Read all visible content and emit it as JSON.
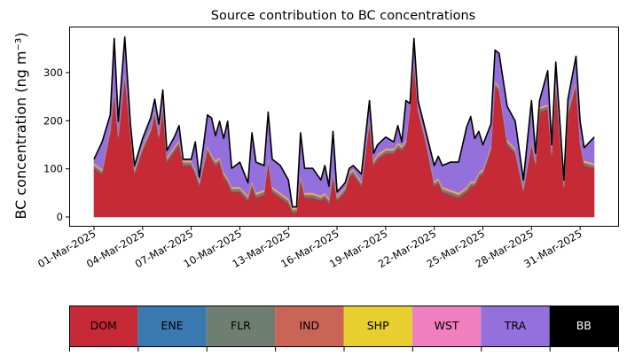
{
  "chart_data": {
    "type": "area",
    "title": "Source contribution to BC concentrations",
    "ylabel": "BC concentration (ng m⁻³)",
    "xlabel": "",
    "x_unit": "days since 01-Mar-2025",
    "ylim": [
      -18,
      400
    ],
    "xlim": [
      -1.53,
      32.35
    ],
    "yticks": [
      0,
      100,
      200,
      300
    ],
    "xticks": [
      {
        "day": 0,
        "label": "01-Mar-2025"
      },
      {
        "day": 3,
        "label": "04-Mar-2025"
      },
      {
        "day": 6,
        "label": "07-Mar-2025"
      },
      {
        "day": 9,
        "label": "10-Mar-2025"
      },
      {
        "day": 12,
        "label": "13-Mar-2025"
      },
      {
        "day": 15,
        "label": "16-Mar-2025"
      },
      {
        "day": 18,
        "label": "19-Mar-2025"
      },
      {
        "day": 21,
        "label": "22-Mar-2025"
      },
      {
        "day": 24,
        "label": "25-Mar-2025"
      },
      {
        "day": 27,
        "label": "28-Mar-2025"
      },
      {
        "day": 30,
        "label": "31-Mar-2025"
      }
    ],
    "x": [
      0,
      0.5,
      1,
      1.25,
      1.5,
      1.9,
      2.25,
      2.5,
      3,
      3.5,
      3.75,
      4,
      4.25,
      4.5,
      5,
      5.25,
      5.5,
      6,
      6.25,
      6.5,
      7,
      7.25,
      7.5,
      7.75,
      8,
      8.25,
      8.5,
      9,
      9.5,
      9.75,
      10,
      10.5,
      10.75,
      11,
      11.5,
      12,
      12.25,
      12.5,
      12.75,
      13,
      13.5,
      14,
      14.25,
      14.5,
      14.75,
      15,
      15.5,
      15.75,
      16,
      16.5,
      17,
      17.25,
      17.5,
      18,
      18.5,
      18.75,
      19,
      19.25,
      19.5,
      19.75,
      20,
      20.5,
      21,
      21.25,
      21.5,
      22,
      22.5,
      23,
      23.25,
      23.5,
      23.75,
      24,
      24.5,
      24.75,
      25,
      25.5,
      26,
      26.5,
      27,
      27.25,
      27.5,
      28,
      28.25,
      28.5,
      29,
      29.25,
      29.75,
      30,
      30.25,
      30.87
    ],
    "series": [
      {
        "name": "DOM",
        "color": "#c52a36",
        "values": [
          101,
          89,
          175,
          255,
          163,
          291,
          169,
          89,
          138,
          175,
          212,
          163,
          224,
          114,
          138,
          150,
          107,
          107,
          89,
          64,
          138,
          120,
          107,
          114,
          83,
          71,
          52,
          52,
          34,
          64,
          40,
          46,
          114,
          52,
          40,
          28,
          9,
          9,
          77,
          40,
          40,
          34,
          40,
          28,
          83,
          34,
          52,
          83,
          89,
          64,
          193,
          107,
          120,
          132,
          132,
          144,
          138,
          150,
          224,
          316,
          218,
          150,
          64,
          71,
          52,
          46,
          40,
          52,
          64,
          64,
          83,
          89,
          138,
          273,
          261,
          150,
          132,
          52,
          150,
          107,
          218,
          224,
          126,
          273,
          58,
          211,
          273,
          150,
          107,
          101
        ]
      },
      {
        "name": "ENE",
        "color": "#3a78b0",
        "values": [
          1,
          1,
          1,
          1,
          1,
          1,
          1,
          1,
          1,
          1,
          1,
          1,
          1,
          1,
          1,
          1,
          1,
          1,
          1,
          1,
          1,
          1,
          1,
          1,
          1,
          1,
          1,
          1,
          1,
          1,
          1,
          1,
          1,
          1,
          1,
          1,
          1,
          1,
          1,
          1,
          1,
          1,
          1,
          1,
          1,
          1,
          1,
          1,
          1,
          1,
          1,
          1,
          1,
          1,
          1,
          1,
          1,
          1,
          1,
          1,
          1,
          1,
          1,
          1,
          1,
          1,
          1,
          1,
          1,
          1,
          1,
          1,
          1,
          1,
          1,
          1,
          1,
          1,
          1,
          1,
          1,
          1,
          1,
          1,
          1,
          1,
          1,
          1,
          1,
          1
        ]
      },
      {
        "name": "FLR",
        "color": "#6e7f72",
        "values": [
          4,
          4,
          4,
          4,
          4,
          4,
          4,
          4,
          4,
          4,
          4,
          4,
          4,
          4,
          4,
          4,
          4,
          4,
          4,
          4,
          4,
          4,
          4,
          4,
          4,
          4,
          4,
          4,
          4,
          4,
          4,
          4,
          4,
          4,
          4,
          4,
          4,
          4,
          4,
          4,
          4,
          4,
          4,
          4,
          4,
          4,
          4,
          4,
          4,
          4,
          4,
          4,
          4,
          4,
          4,
          4,
          4,
          4,
          4,
          4,
          4,
          4,
          4,
          4,
          4,
          4,
          4,
          4,
          4,
          4,
          4,
          4,
          4,
          4,
          4,
          4,
          4,
          4,
          4,
          4,
          4,
          4,
          4,
          4,
          4,
          4,
          4,
          4,
          4,
          4
        ]
      },
      {
        "name": "IND",
        "color": "#c86556",
        "values": [
          2,
          2,
          2,
          2,
          2,
          2,
          2,
          2,
          2,
          2,
          2,
          2,
          2,
          2,
          2,
          2,
          2,
          2,
          2,
          2,
          2,
          2,
          2,
          2,
          2,
          2,
          2,
          2,
          2,
          2,
          2,
          2,
          2,
          2,
          2,
          2,
          2,
          2,
          2,
          2,
          2,
          2,
          2,
          2,
          2,
          2,
          2,
          2,
          2,
          2,
          2,
          2,
          2,
          2,
          2,
          2,
          2,
          2,
          2,
          2,
          2,
          2,
          2,
          2,
          2,
          2,
          2,
          2,
          2,
          2,
          2,
          2,
          2,
          2,
          2,
          2,
          2,
          2,
          2,
          2,
          2,
          2,
          2,
          2,
          2,
          2,
          2,
          2,
          2,
          2
        ]
      },
      {
        "name": "SHP",
        "color": "#e6cf2e",
        "values": [
          2,
          2,
          2,
          2,
          2,
          2,
          2,
          2,
          2,
          2,
          2,
          2,
          2,
          2,
          2,
          2,
          2,
          2,
          2,
          2,
          2,
          2,
          2,
          2,
          2,
          2,
          2,
          2,
          2,
          2,
          2,
          2,
          2,
          2,
          2,
          2,
          2,
          2,
          2,
          2,
          2,
          2,
          2,
          2,
          2,
          2,
          2,
          2,
          2,
          2,
          2,
          2,
          2,
          2,
          2,
          2,
          2,
          2,
          2,
          2,
          2,
          2,
          2,
          2,
          2,
          2,
          2,
          2,
          2,
          2,
          2,
          2,
          2,
          2,
          2,
          2,
          2,
          2,
          2,
          2,
          2,
          2,
          2,
          2,
          2,
          2,
          2,
          2,
          2,
          2
        ]
      },
      {
        "name": "WST",
        "color": "#f07fbf",
        "values": [
          2,
          2,
          2,
          2,
          2,
          2,
          2,
          2,
          2,
          2,
          2,
          2,
          2,
          2,
          2,
          2,
          2,
          2,
          2,
          2,
          2,
          2,
          2,
          2,
          2,
          2,
          2,
          2,
          2,
          2,
          2,
          2,
          2,
          2,
          2,
          2,
          2,
          2,
          2,
          2,
          2,
          2,
          2,
          2,
          2,
          2,
          2,
          2,
          2,
          2,
          2,
          2,
          2,
          2,
          2,
          2,
          2,
          2,
          2,
          2,
          2,
          2,
          2,
          2,
          2,
          2,
          2,
          2,
          2,
          2,
          2,
          2,
          2,
          2,
          2,
          2,
          2,
          2,
          2,
          2,
          2,
          2,
          2,
          2,
          2,
          2,
          2,
          2,
          2,
          2
        ]
      },
      {
        "name": "TRA",
        "color": "#9370db",
        "values": [
          8,
          56,
          26,
          105,
          25,
          72,
          13,
          7,
          14,
          20,
          22,
          19,
          29,
          13,
          20,
          29,
          2,
          2,
          56,
          8,
          63,
          75,
          51,
          74,
          69,
          117,
          38,
          51,
          26,
          100,
          63,
          50,
          93,
          57,
          56,
          38,
          1,
          1,
          87,
          50,
          50,
          32,
          56,
          25,
          84,
          7,
          8,
          7,
          7,
          14,
          38,
          14,
          19,
          23,
          13,
          35,
          7,
          81,
          1,
          44,
          13,
          14,
          32,
          44,
          44,
          57,
          63,
          124,
          134,
          88,
          84,
          50,
          44,
          63,
          68,
          69,
          56,
          14,
          81,
          14,
          13,
          69,
          13,
          38,
          8,
          23,
          50,
          38,
          26,
          54
        ]
      }
    ],
    "total_line": {
      "name": "BB",
      "color": "#000000",
      "description": "sum of all sources"
    },
    "legend": {
      "placement": "bottom",
      "entries": [
        "DOM",
        "ENE",
        "FLR",
        "IND",
        "SHP",
        "WST",
        "TRA",
        "BB"
      ],
      "colors": [
        "#c52a36",
        "#3a78b0",
        "#6e7f72",
        "#c86556",
        "#e6cf2e",
        "#f07fbf",
        "#9370db",
        "#000000"
      ]
    }
  }
}
